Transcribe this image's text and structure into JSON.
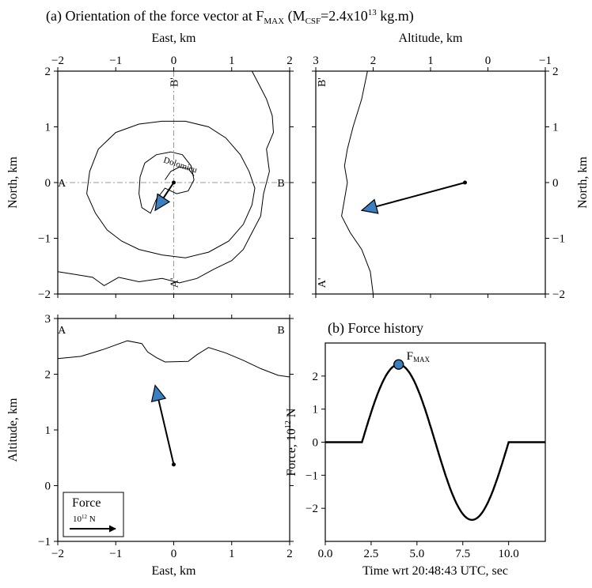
{
  "figure": {
    "title_a": {
      "main": "(a) Orientation of the force vector at F",
      "sub1": "MAX",
      "mid": " (M",
      "sub2": "CSF",
      "mid2": "=2.4x10",
      "sup": "13",
      "end": " kg.m)"
    },
    "title_b": "(b) Force history"
  },
  "colors": {
    "arrow_fill": "#3a7fbf",
    "marker_fill": "#3a7fbf",
    "line": "#000000",
    "guide": "#999999"
  },
  "chart_data": [
    {
      "id": "map-view",
      "type": "line",
      "xlabel_top": "East, km",
      "ylabel": "North, km",
      "xlim": [
        -2,
        2
      ],
      "ylim": [
        -2,
        2
      ],
      "xticks": [
        -2,
        -1,
        0,
        1,
        2
      ],
      "yticks": [
        -2,
        -1,
        0,
        1,
        2
      ],
      "xtick_labels": [
        "−2",
        "−1",
        "0",
        "1",
        "2"
      ],
      "ytick_labels": [
        "−2",
        "−1",
        "0",
        "1",
        "2"
      ],
      "annotations": [
        {
          "text": "A",
          "x": -1.93,
          "y": 0
        },
        {
          "text": "B",
          "x": 1.85,
          "y": 0
        },
        {
          "text": "B'",
          "x": 0,
          "y": 1.8
        },
        {
          "text": "A'",
          "x": 0,
          "y": -1.8
        },
        {
          "text": "Dolomieu",
          "x": 0.1,
          "y": 0.27
        }
      ],
      "contours": [
        [
          [
            -0.5,
            0.35
          ],
          [
            -0.3,
            0.5
          ],
          [
            -0.05,
            0.55
          ],
          [
            0.15,
            0.5
          ],
          [
            0.3,
            0.3
          ],
          [
            0.35,
            0.05
          ],
          [
            0.25,
            -0.15
          ],
          [
            0.05,
            -0.2
          ],
          [
            -0.15,
            -0.1
          ],
          [
            -0.3,
            -0.3
          ],
          [
            -0.4,
            -0.55
          ],
          [
            -0.55,
            -0.45
          ],
          [
            -0.6,
            -0.2
          ],
          [
            -0.58,
            0.1
          ],
          [
            -0.5,
            0.35
          ]
        ],
        [
          [
            -0.15,
            0.05
          ],
          [
            -0.05,
            0.2
          ],
          [
            0.1,
            0.28
          ],
          [
            0.25,
            0.25
          ],
          [
            0.35,
            0.12
          ]
        ],
        [
          [
            -1.5,
            -0.2
          ],
          [
            -1.45,
            0.2
          ],
          [
            -1.3,
            0.6
          ],
          [
            -1.0,
            0.9
          ],
          [
            -0.6,
            1.05
          ],
          [
            -0.2,
            1.1
          ],
          [
            0.2,
            1.1
          ],
          [
            0.6,
            1.0
          ],
          [
            0.9,
            0.8
          ],
          [
            1.15,
            0.5
          ],
          [
            1.3,
            0.2
          ],
          [
            1.4,
            -0.1
          ],
          [
            1.35,
            -0.4
          ],
          [
            1.2,
            -0.75
          ],
          [
            0.95,
            -1.05
          ],
          [
            0.6,
            -1.25
          ],
          [
            0.2,
            -1.35
          ],
          [
            -0.2,
            -1.3
          ],
          [
            -0.6,
            -1.2
          ],
          [
            -0.9,
            -1.05
          ],
          [
            -1.15,
            -0.85
          ],
          [
            -1.35,
            -0.55
          ],
          [
            -1.5,
            -0.2
          ]
        ],
        [
          [
            -2.0,
            -1.6
          ],
          [
            -1.7,
            -1.65
          ],
          [
            -1.4,
            -1.7
          ],
          [
            -1.2,
            -1.85
          ],
          [
            -0.95,
            -1.7
          ],
          [
            -0.6,
            -1.78
          ],
          [
            -0.2,
            -1.72
          ],
          [
            0.1,
            -1.8
          ],
          [
            0.4,
            -1.72
          ],
          [
            0.7,
            -1.55
          ],
          [
            1.0,
            -1.4
          ],
          [
            1.2,
            -1.2
          ],
          [
            1.35,
            -0.9
          ],
          [
            1.5,
            -0.6
          ],
          [
            1.55,
            -0.2
          ],
          [
            1.65,
            0.2
          ],
          [
            1.6,
            0.6
          ],
          [
            1.72,
            0.9
          ],
          [
            1.7,
            1.2
          ],
          [
            1.6,
            1.5
          ],
          [
            1.5,
            1.7
          ],
          [
            1.35,
            2.0
          ]
        ]
      ],
      "vector": {
        "x0": 0,
        "y0": 0,
        "x1": -0.32,
        "y1": -0.5
      }
    },
    {
      "id": "section-b",
      "type": "line",
      "xlabel_top": "Altitude, km",
      "ylabel": "North, km",
      "xlim": [
        3,
        -1
      ],
      "ylim": [
        -2,
        2
      ],
      "xticks": [
        3,
        2,
        1,
        0,
        -1
      ],
      "yticks": [
        -2,
        -1,
        0,
        1,
        2
      ],
      "xtick_labels": [
        "3",
        "2",
        "1",
        "0",
        "−1"
      ],
      "ytick_labels": [
        "−2",
        "−1",
        "0",
        "1",
        "2"
      ],
      "annotations": [
        {
          "text": "B'",
          "x": 2.9,
          "y": 1.8
        },
        {
          "text": "A'",
          "x": 2.9,
          "y": -1.8
        }
      ],
      "profile": [
        [
          2.1,
          2.0
        ],
        [
          2.2,
          1.5
        ],
        [
          2.35,
          1.0
        ],
        [
          2.45,
          0.6
        ],
        [
          2.5,
          0.3
        ],
        [
          2.45,
          0.0
        ],
        [
          2.5,
          -0.3
        ],
        [
          2.55,
          -0.6
        ],
        [
          2.4,
          -0.9
        ],
        [
          2.2,
          -1.2
        ],
        [
          2.05,
          -1.6
        ],
        [
          2.0,
          -2.0
        ]
      ],
      "vector": {
        "x0": 0.4,
        "y0": 0,
        "x1": 2.2,
        "y1": -0.5
      }
    },
    {
      "id": "section-a",
      "type": "line",
      "xlabel": "East, km",
      "ylabel": "Altitude, km",
      "xlim": [
        -2,
        2
      ],
      "ylim": [
        -1,
        3
      ],
      "xticks": [
        -2,
        -1,
        0,
        1,
        2
      ],
      "yticks": [
        -1,
        0,
        1,
        2,
        3
      ],
      "xtick_labels": [
        "−2",
        "−1",
        "0",
        "1",
        "2"
      ],
      "ytick_labels": [
        "−1",
        "0",
        "1",
        "2",
        "3"
      ],
      "annotations": [
        {
          "text": "A",
          "x": -1.93,
          "y": 2.8
        },
        {
          "text": "B",
          "x": 1.85,
          "y": 2.8
        }
      ],
      "profile": [
        [
          -2.0,
          2.28
        ],
        [
          -1.6,
          2.32
        ],
        [
          -1.2,
          2.45
        ],
        [
          -0.8,
          2.6
        ],
        [
          -0.55,
          2.55
        ],
        [
          -0.45,
          2.4
        ],
        [
          -0.3,
          2.3
        ],
        [
          -0.15,
          2.22
        ],
        [
          0.25,
          2.23
        ],
        [
          0.4,
          2.35
        ],
        [
          0.6,
          2.48
        ],
        [
          0.9,
          2.38
        ],
        [
          1.2,
          2.25
        ],
        [
          1.5,
          2.1
        ],
        [
          1.8,
          1.98
        ],
        [
          2.0,
          1.95
        ]
      ],
      "vector": {
        "x0": 0,
        "y0": 0.38,
        "x1": -0.32,
        "y1": 1.8
      },
      "legend": {
        "title": "Force",
        "label_base": "10",
        "label_exp": "12",
        "label_unit": " N"
      }
    },
    {
      "id": "force-history",
      "type": "line",
      "title": "(b) Force history",
      "xlabel": "Time wrt 20:48:43 UTC, sec",
      "ylabel_base": "Force, 10",
      "ylabel_exp": "12",
      "ylabel_unit": " N",
      "xlim": [
        0,
        12
      ],
      "ylim": [
        -3,
        3
      ],
      "xticks": [
        0,
        2.5,
        5,
        7.5,
        10
      ],
      "yticks": [
        -2,
        -1,
        0,
        1,
        2
      ],
      "xtick_labels": [
        "0.0",
        "2.5",
        "5.0",
        "7.5",
        "10.0"
      ],
      "ytick_labels": [
        "−2",
        "−1",
        "0",
        "1",
        "2"
      ],
      "series": [
        {
          "t_start": 2.0,
          "t_end": 10.0,
          "amplitude": 2.35,
          "x_range": [
            0,
            12
          ]
        }
      ],
      "marker": {
        "x": 4.0,
        "y": 2.35,
        "label_base": "F",
        "label_sub": "MAX"
      }
    }
  ]
}
